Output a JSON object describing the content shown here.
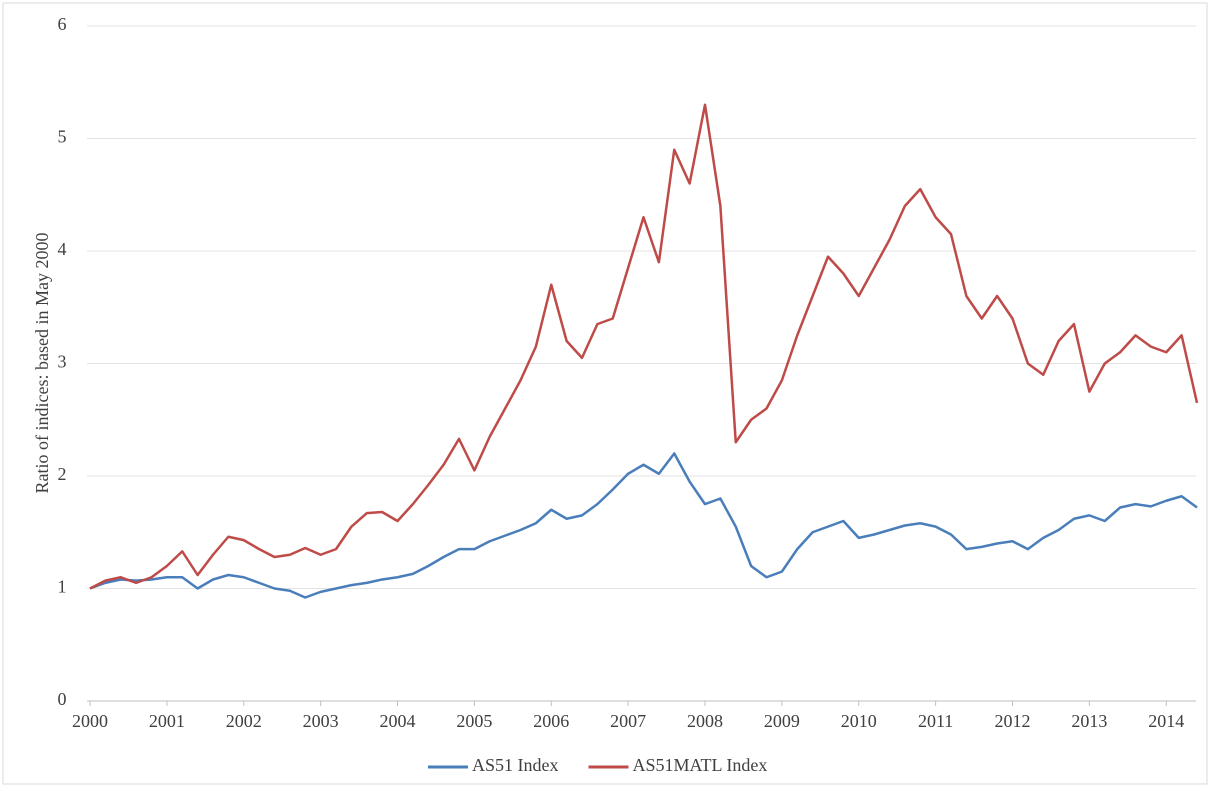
{
  "chart_data": {
    "type": "line",
    "y_label": "Ratio of  indices: based in May 2000",
    "x": [
      2000,
      2000.2,
      2000.4,
      2000.6,
      2000.8,
      2001,
      2001.2,
      2001.4,
      2001.6,
      2001.8,
      2002,
      2002.2,
      2002.4,
      2002.6,
      2002.8,
      2003,
      2003.2,
      2003.4,
      2003.6,
      2003.8,
      2004,
      2004.2,
      2004.4,
      2004.6,
      2004.8,
      2005,
      2005.2,
      2005.4,
      2005.6,
      2005.8,
      2006,
      2006.2,
      2006.4,
      2006.6,
      2006.8,
      2007,
      2007.2,
      2007.4,
      2007.6,
      2007.8,
      2008,
      2008.2,
      2008.4,
      2008.6,
      2008.8,
      2009,
      2009.2,
      2009.4,
      2009.6,
      2009.8,
      2010,
      2010.2,
      2010.4,
      2010.6,
      2010.8,
      2011,
      2011.2,
      2011.4,
      2011.6,
      2011.8,
      2012,
      2012.2,
      2012.4,
      2012.6,
      2012.8,
      2013,
      2013.2,
      2013.4,
      2013.6,
      2013.8,
      2014,
      2014.2,
      2014.4
    ],
    "series": [
      {
        "name": "AS51 Index",
        "color": "#4a7ebb",
        "values": [
          1.0,
          1.05,
          1.08,
          1.07,
          1.08,
          1.1,
          1.1,
          1.0,
          1.08,
          1.12,
          1.1,
          1.05,
          1.0,
          0.98,
          0.92,
          0.97,
          1.0,
          1.03,
          1.05,
          1.08,
          1.1,
          1.13,
          1.2,
          1.28,
          1.35,
          1.35,
          1.42,
          1.47,
          1.52,
          1.58,
          1.7,
          1.62,
          1.65,
          1.75,
          1.88,
          2.02,
          2.1,
          2.02,
          2.2,
          1.95,
          1.75,
          1.8,
          1.55,
          1.2,
          1.1,
          1.15,
          1.35,
          1.5,
          1.55,
          1.6,
          1.45,
          1.48,
          1.52,
          1.56,
          1.58,
          1.55,
          1.48,
          1.35,
          1.37,
          1.4,
          1.42,
          1.35,
          1.45,
          1.52,
          1.62,
          1.65,
          1.6,
          1.72,
          1.75,
          1.73,
          1.78,
          1.82,
          1.72
        ]
      },
      {
        "name": "AS51MATL Index",
        "color": "#be4b48",
        "values": [
          1.0,
          1.07,
          1.1,
          1.05,
          1.1,
          1.2,
          1.33,
          1.12,
          1.3,
          1.46,
          1.43,
          1.35,
          1.28,
          1.3,
          1.36,
          1.3,
          1.35,
          1.55,
          1.67,
          1.68,
          1.6,
          1.75,
          1.92,
          2.1,
          2.33,
          2.05,
          2.35,
          2.6,
          2.85,
          3.15,
          3.7,
          3.2,
          3.05,
          3.35,
          3.4,
          3.85,
          4.3,
          3.9,
          4.9,
          4.6,
          5.3,
          4.4,
          2.3,
          2.5,
          2.6,
          2.85,
          3.25,
          3.6,
          3.95,
          3.8,
          3.6,
          3.85,
          4.1,
          4.4,
          4.55,
          4.3,
          4.15,
          3.6,
          3.4,
          3.6,
          3.4,
          3.0,
          2.9,
          3.2,
          3.35,
          2.75,
          3.0,
          3.1,
          3.25,
          3.15,
          3.1,
          3.25,
          2.65
        ]
      }
    ],
    "xlim": [
      2000,
      2014.4
    ],
    "xticks": [
      2000,
      2001,
      2002,
      2003,
      2004,
      2005,
      2006,
      2007,
      2008,
      2009,
      2010,
      2011,
      2012,
      2013,
      2014
    ],
    "ylim": [
      0,
      6
    ],
    "yticks": [
      0,
      1,
      2,
      3,
      4,
      5,
      6
    ],
    "grid": true,
    "legend": "bottom"
  }
}
